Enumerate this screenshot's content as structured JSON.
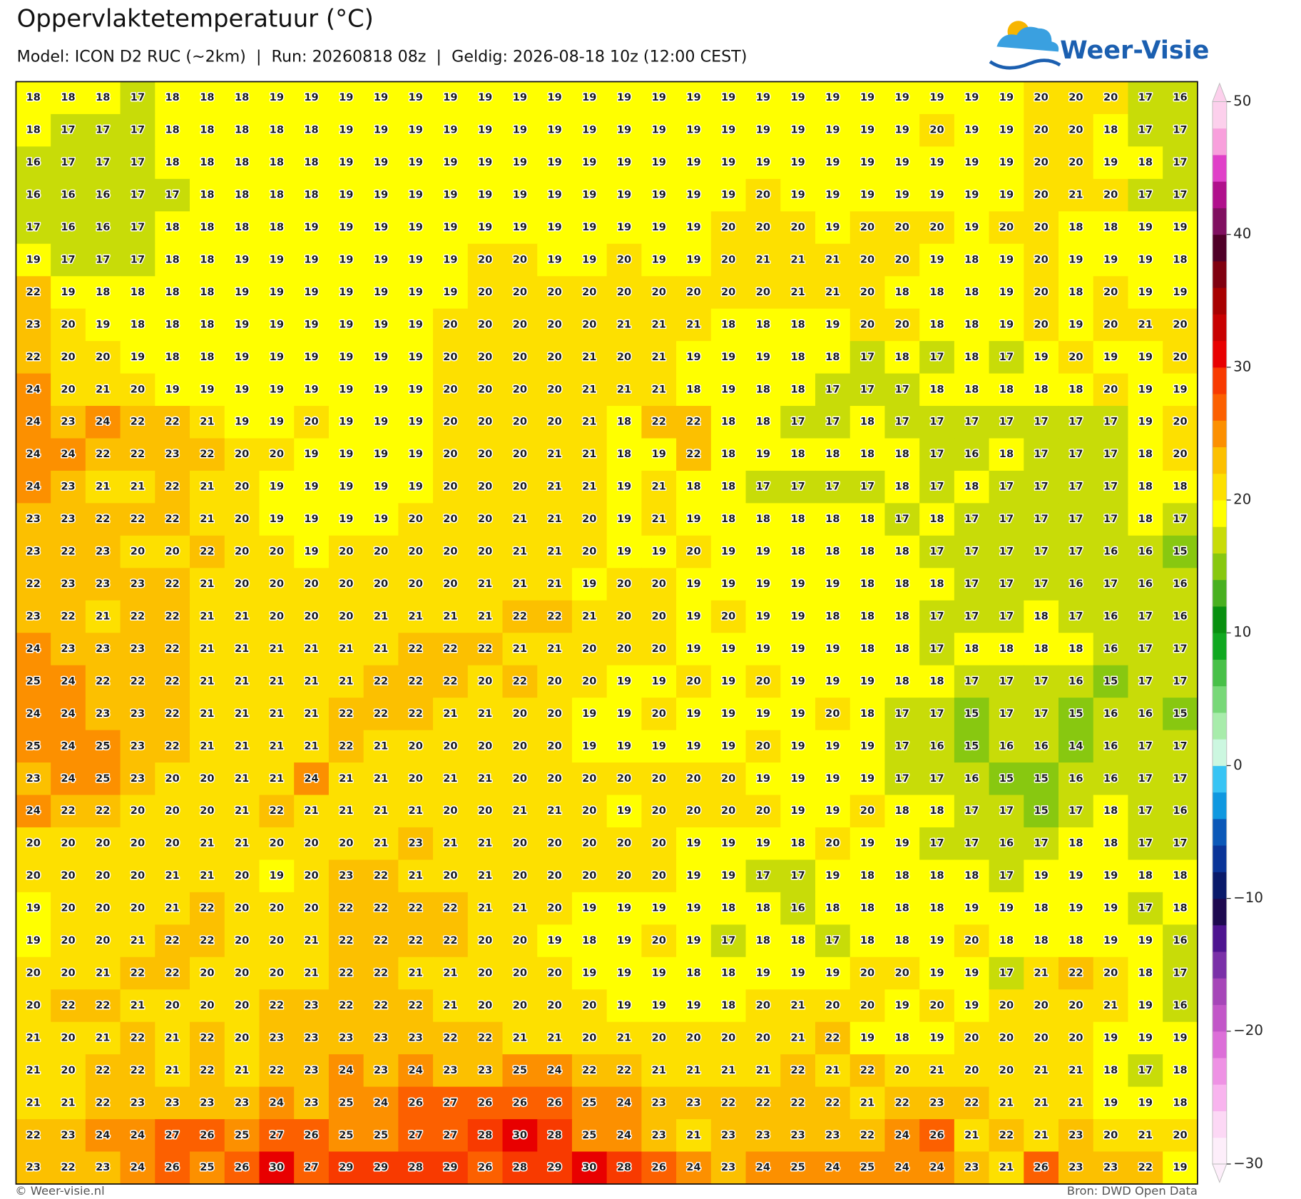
{
  "header": {
    "title": "Oppervlaktetemperatuur (°C)",
    "subtitle": "Model: ICON D2 RUC (~2km)  |  Run: 20260818 08z  |  Geldig: 2026-08-18 10z (12:00 CEST)",
    "logo": "Weer-Visie"
  },
  "map": {
    "values": [
      [
        18,
        18,
        18,
        17,
        18,
        18,
        18,
        19,
        19,
        19,
        19,
        19,
        19,
        19,
        19,
        19,
        19,
        19,
        19,
        19,
        19,
        19,
        19,
        19,
        19,
        19,
        19,
        19,
        19,
        20,
        20,
        20,
        17,
        16
      ],
      [
        18,
        17,
        17,
        17,
        18,
        18,
        18,
        18,
        18,
        19,
        19,
        19,
        19,
        19,
        19,
        19,
        19,
        19,
        19,
        19,
        19,
        19,
        19,
        19,
        19,
        19,
        20,
        19,
        19,
        20,
        20,
        18,
        17,
        17
      ],
      [
        16,
        17,
        17,
        17,
        18,
        18,
        18,
        18,
        18,
        19,
        19,
        19,
        19,
        19,
        19,
        19,
        19,
        19,
        19,
        19,
        19,
        19,
        19,
        19,
        19,
        19,
        19,
        19,
        19,
        20,
        20,
        19,
        18,
        17
      ],
      [
        16,
        16,
        16,
        17,
        17,
        18,
        18,
        18,
        18,
        19,
        19,
        19,
        19,
        19,
        19,
        19,
        19,
        19,
        19,
        19,
        19,
        20,
        19,
        19,
        19,
        19,
        19,
        19,
        19,
        20,
        21,
        20,
        17,
        17
      ],
      [
        17,
        16,
        16,
        17,
        18,
        18,
        18,
        18,
        19,
        19,
        19,
        19,
        19,
        19,
        19,
        19,
        19,
        19,
        19,
        19,
        20,
        20,
        20,
        19,
        20,
        20,
        20,
        19,
        20,
        20,
        18,
        18,
        19,
        19
      ],
      [
        19,
        17,
        17,
        17,
        18,
        18,
        19,
        19,
        19,
        19,
        19,
        19,
        19,
        20,
        20,
        19,
        19,
        20,
        19,
        19,
        20,
        21,
        21,
        21,
        20,
        20,
        19,
        18,
        19,
        20,
        19,
        19,
        19,
        18
      ],
      [
        22,
        19,
        18,
        18,
        18,
        18,
        19,
        19,
        19,
        19,
        19,
        19,
        19,
        20,
        20,
        20,
        20,
        20,
        20,
        20,
        20,
        20,
        21,
        21,
        20,
        18,
        18,
        18,
        19,
        20,
        18,
        20,
        19,
        19
      ],
      [
        23,
        20,
        19,
        18,
        18,
        18,
        19,
        19,
        19,
        19,
        19,
        19,
        20,
        20,
        20,
        20,
        20,
        21,
        21,
        21,
        18,
        18,
        18,
        19,
        20,
        20,
        18,
        18,
        19,
        20,
        19,
        20,
        21,
        20
      ],
      [
        22,
        20,
        20,
        19,
        18,
        18,
        19,
        19,
        19,
        19,
        19,
        19,
        20,
        20,
        20,
        20,
        21,
        20,
        21,
        19,
        19,
        19,
        18,
        18,
        17,
        18,
        17,
        18,
        17,
        19,
        20,
        19,
        19,
        20
      ],
      [
        24,
        20,
        21,
        20,
        19,
        19,
        19,
        19,
        19,
        19,
        19,
        19,
        20,
        20,
        20,
        20,
        21,
        21,
        21,
        18,
        19,
        18,
        18,
        17,
        17,
        17,
        18,
        18,
        18,
        18,
        18,
        20,
        19,
        19
      ],
      [
        24,
        23,
        24,
        22,
        22,
        21,
        19,
        19,
        20,
        19,
        19,
        19,
        20,
        20,
        20,
        20,
        21,
        18,
        22,
        22,
        18,
        18,
        17,
        17,
        18,
        17,
        17,
        17,
        17,
        17,
        17,
        17,
        19,
        20
      ],
      [
        24,
        24,
        22,
        22,
        23,
        22,
        20,
        20,
        19,
        19,
        19,
        19,
        20,
        20,
        20,
        21,
        21,
        18,
        19,
        22,
        18,
        19,
        18,
        18,
        18,
        18,
        17,
        16,
        18,
        17,
        17,
        17,
        18,
        20
      ],
      [
        24,
        23,
        21,
        21,
        22,
        21,
        20,
        19,
        19,
        19,
        19,
        19,
        20,
        20,
        20,
        21,
        21,
        19,
        21,
        18,
        18,
        17,
        17,
        17,
        17,
        18,
        17,
        18,
        17,
        17,
        17,
        17,
        18,
        18
      ],
      [
        23,
        23,
        22,
        22,
        22,
        21,
        20,
        19,
        19,
        19,
        19,
        20,
        20,
        20,
        21,
        21,
        20,
        19,
        21,
        19,
        18,
        18,
        18,
        18,
        18,
        17,
        18,
        17,
        17,
        17,
        17,
        17,
        18,
        17
      ],
      [
        23,
        22,
        23,
        20,
        20,
        22,
        20,
        20,
        19,
        20,
        20,
        20,
        20,
        20,
        21,
        21,
        20,
        19,
        19,
        20,
        19,
        19,
        18,
        18,
        18,
        18,
        17,
        17,
        17,
        17,
        17,
        16,
        16,
        15
      ],
      [
        22,
        23,
        23,
        23,
        22,
        21,
        20,
        20,
        20,
        20,
        20,
        20,
        20,
        21,
        21,
        21,
        19,
        20,
        20,
        19,
        19,
        19,
        19,
        19,
        18,
        18,
        18,
        17,
        17,
        17,
        16,
        17,
        16,
        16
      ],
      [
        23,
        22,
        21,
        22,
        22,
        21,
        21,
        20,
        20,
        20,
        21,
        21,
        21,
        21,
        22,
        22,
        21,
        20,
        20,
        19,
        20,
        19,
        19,
        18,
        18,
        18,
        17,
        17,
        17,
        18,
        17,
        16,
        17,
        16
      ],
      [
        24,
        23,
        23,
        23,
        22,
        21,
        21,
        21,
        21,
        21,
        21,
        22,
        22,
        22,
        21,
        21,
        20,
        20,
        20,
        19,
        19,
        19,
        19,
        19,
        18,
        18,
        17,
        18,
        18,
        18,
        18,
        16,
        17,
        17
      ],
      [
        25,
        24,
        22,
        22,
        22,
        21,
        21,
        21,
        21,
        21,
        22,
        22,
        22,
        20,
        22,
        20,
        20,
        19,
        19,
        20,
        19,
        20,
        19,
        19,
        19,
        18,
        18,
        17,
        17,
        17,
        16,
        15,
        17,
        17
      ],
      [
        24,
        24,
        23,
        23,
        22,
        21,
        21,
        21,
        21,
        22,
        22,
        22,
        21,
        21,
        20,
        20,
        19,
        19,
        20,
        19,
        19,
        19,
        19,
        20,
        18,
        17,
        17,
        15,
        17,
        17,
        15,
        16,
        16,
        15
      ],
      [
        25,
        24,
        25,
        23,
        22,
        21,
        21,
        21,
        21,
        22,
        21,
        20,
        20,
        20,
        20,
        20,
        19,
        19,
        19,
        19,
        19,
        20,
        19,
        19,
        19,
        17,
        16,
        15,
        16,
        16,
        14,
        16,
        17,
        17
      ],
      [
        23,
        24,
        25,
        23,
        20,
        20,
        21,
        21,
        24,
        21,
        21,
        20,
        21,
        21,
        20,
        20,
        20,
        20,
        20,
        20,
        20,
        19,
        19,
        19,
        19,
        17,
        17,
        16,
        15,
        15,
        16,
        16,
        17,
        17
      ],
      [
        24,
        22,
        22,
        20,
        20,
        20,
        21,
        22,
        21,
        21,
        21,
        21,
        20,
        20,
        21,
        21,
        20,
        19,
        20,
        20,
        20,
        20,
        19,
        19,
        20,
        18,
        18,
        17,
        17,
        15,
        17,
        18,
        17,
        16
      ],
      [
        20,
        20,
        20,
        20,
        20,
        21,
        21,
        20,
        20,
        20,
        21,
        23,
        21,
        21,
        20,
        20,
        20,
        20,
        20,
        19,
        19,
        19,
        18,
        20,
        19,
        19,
        17,
        17,
        16,
        17,
        18,
        18,
        17,
        17
      ],
      [
        20,
        20,
        20,
        20,
        21,
        21,
        20,
        19,
        20,
        23,
        22,
        21,
        20,
        21,
        20,
        20,
        20,
        20,
        20,
        19,
        19,
        17,
        17,
        19,
        18,
        18,
        18,
        18,
        17,
        19,
        19,
        19,
        18,
        18
      ],
      [
        19,
        20,
        20,
        20,
        21,
        22,
        20,
        20,
        20,
        22,
        22,
        22,
        22,
        21,
        21,
        20,
        19,
        19,
        19,
        19,
        18,
        18,
        16,
        18,
        18,
        18,
        18,
        19,
        19,
        18,
        19,
        19,
        17,
        18
      ],
      [
        19,
        20,
        20,
        21,
        22,
        22,
        20,
        20,
        21,
        22,
        22,
        22,
        22,
        20,
        20,
        19,
        18,
        19,
        20,
        19,
        17,
        18,
        18,
        17,
        18,
        18,
        19,
        20,
        18,
        18,
        18,
        19,
        19,
        16
      ],
      [
        20,
        20,
        21,
        22,
        22,
        20,
        20,
        20,
        21,
        22,
        22,
        21,
        21,
        20,
        20,
        20,
        19,
        19,
        19,
        18,
        18,
        19,
        19,
        19,
        20,
        20,
        19,
        19,
        17,
        21,
        22,
        20,
        18,
        17
      ],
      [
        20,
        22,
        22,
        21,
        20,
        20,
        20,
        22,
        23,
        22,
        22,
        22,
        21,
        20,
        20,
        20,
        20,
        19,
        19,
        19,
        18,
        20,
        21,
        20,
        20,
        19,
        20,
        19,
        20,
        20,
        20,
        21,
        19,
        16
      ],
      [
        21,
        20,
        21,
        22,
        21,
        22,
        20,
        23,
        23,
        23,
        23,
        23,
        22,
        22,
        21,
        21,
        20,
        21,
        20,
        20,
        20,
        20,
        21,
        22,
        19,
        18,
        19,
        20,
        20,
        20,
        20,
        19,
        19,
        19
      ],
      [
        21,
        20,
        22,
        22,
        21,
        22,
        21,
        22,
        23,
        24,
        23,
        24,
        23,
        23,
        25,
        24,
        22,
        22,
        21,
        21,
        21,
        21,
        22,
        21,
        22,
        20,
        21,
        20,
        20,
        21,
        21,
        18,
        17,
        18
      ],
      [
        21,
        21,
        22,
        23,
        23,
        23,
        23,
        24,
        23,
        25,
        24,
        26,
        27,
        26,
        26,
        26,
        25,
        24,
        23,
        23,
        22,
        22,
        22,
        22,
        21,
        22,
        23,
        22,
        21,
        21,
        21,
        19,
        19,
        18
      ],
      [
        22,
        23,
        24,
        24,
        27,
        26,
        25,
        27,
        26,
        25,
        25,
        27,
        27,
        28,
        30,
        28,
        25,
        24,
        23,
        21,
        23,
        23,
        23,
        23,
        22,
        24,
        26,
        21,
        22,
        21,
        23,
        20,
        21,
        20
      ],
      [
        23,
        22,
        23,
        24,
        26,
        25,
        26,
        30,
        27,
        29,
        29,
        28,
        29,
        26,
        28,
        29,
        30,
        28,
        26,
        24,
        23,
        24,
        25,
        24,
        25,
        24,
        24,
        23,
        21,
        26,
        23,
        23,
        22,
        19
      ]
    ]
  },
  "colorbar": {
    "lim": [
      -30,
      50
    ],
    "ticks": [
      {
        "value": -30,
        "label": "−30"
      },
      {
        "value": -20,
        "label": "−20"
      },
      {
        "value": -10,
        "label": "−10"
      },
      0,
      10,
      20,
      30,
      40,
      50
    ],
    "colors": [
      "#fdeefa",
      "#fcd8f5",
      "#f8b4ee",
      "#ee92e4",
      "#dc6fd8",
      "#c257c8",
      "#a646b8",
      "#7a30a8",
      "#4e1490",
      "#1e0a50",
      "#0a1a6a",
      "#0a3498",
      "#0b58b8",
      "#0f98e0",
      "#38c4f4",
      "#ccf7e0",
      "#a8ecab",
      "#78d878",
      "#48c048",
      "#10a820",
      "#089010",
      "#48b020",
      "#88c810",
      "#c8dc08",
      "#ffff00",
      "#fde000",
      "#fcc000",
      "#fc9000",
      "#fc6000",
      "#f83a00",
      "#e80000",
      "#c80000",
      "#a80000",
      "#800010",
      "#500028",
      "#801060",
      "#b0108c",
      "#e040c8",
      "#f8a0dc",
      "#fcd0ec"
    ]
  },
  "footer": {
    "left": "© Weer-visie.nl",
    "right": "Bron: DWD Open Data"
  }
}
